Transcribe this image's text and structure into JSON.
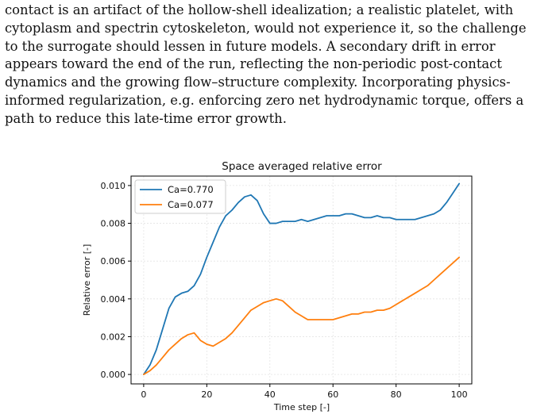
{
  "paragraph": {
    "lines": [
      "contact is an artifact of the hollow-shell idealization; a realistic platelet, with",
      "cytoplasm and spectrin cytoskeleton, would not experience it, so the challenge",
      "to the surrogate should lessen in future models.  A secondary drift in error",
      "appears toward the end of the run, reflecting the non-periodic post-contact",
      "dynamics and the growing flow–structure complexity.  Incorporating physics-",
      "informed regularization, e.g. enforcing zero net hydrodynamic torque, offers a",
      "path to reduce this late-time error growth."
    ]
  },
  "chart_data": {
    "type": "line",
    "title": "Space averaged relative error",
    "xlabel": "Time step [-]",
    "ylabel": "Relative error [-]",
    "xlim": [
      -4,
      104
    ],
    "ylim": [
      -0.0005,
      0.0105
    ],
    "xticks": [
      0,
      20,
      40,
      60,
      80,
      100
    ],
    "xtick_labels": [
      "0",
      "20",
      "40",
      "60",
      "80",
      "100"
    ],
    "yticks": [
      0,
      0.002,
      0.004,
      0.006,
      0.008,
      0.01
    ],
    "ytick_labels": [
      "0.000",
      "0.002",
      "0.004",
      "0.006",
      "0.008",
      "0.010"
    ],
    "grid": true,
    "legend": "top-left",
    "series": [
      {
        "name": "Ca=0.770",
        "color": "#1f77b4",
        "x": [
          0,
          2,
          4,
          6,
          8,
          10,
          12,
          14,
          16,
          18,
          20,
          22,
          24,
          26,
          28,
          30,
          32,
          34,
          36,
          38,
          40,
          42,
          44,
          46,
          48,
          50,
          52,
          54,
          56,
          58,
          60,
          62,
          64,
          66,
          68,
          70,
          72,
          74,
          76,
          78,
          80,
          82,
          84,
          86,
          88,
          90,
          92,
          94,
          96,
          98,
          100
        ],
        "y": [
          0.0,
          0.0005,
          0.0013,
          0.0024,
          0.0035,
          0.0041,
          0.0043,
          0.0044,
          0.0047,
          0.0053,
          0.0062,
          0.007,
          0.0078,
          0.0084,
          0.0087,
          0.0091,
          0.0094,
          0.0095,
          0.0092,
          0.0085,
          0.008,
          0.008,
          0.0081,
          0.0081,
          0.0081,
          0.0082,
          0.0081,
          0.0082,
          0.0083,
          0.0084,
          0.0084,
          0.0084,
          0.0085,
          0.0085,
          0.0084,
          0.0083,
          0.0083,
          0.0084,
          0.0083,
          0.0083,
          0.0082,
          0.0082,
          0.0082,
          0.0082,
          0.0083,
          0.0084,
          0.0085,
          0.0087,
          0.0091,
          0.0096,
          0.0101
        ]
      },
      {
        "name": "Ca=0.077",
        "color": "#ff7f0e",
        "x": [
          0,
          2,
          4,
          6,
          8,
          10,
          12,
          14,
          16,
          18,
          20,
          22,
          24,
          26,
          28,
          30,
          32,
          34,
          36,
          38,
          40,
          42,
          44,
          46,
          48,
          50,
          52,
          54,
          56,
          58,
          60,
          62,
          64,
          66,
          68,
          70,
          72,
          74,
          76,
          78,
          80,
          82,
          84,
          86,
          88,
          90,
          92,
          94,
          96,
          98,
          100
        ],
        "y": [
          0.0,
          0.0002,
          0.0005,
          0.0009,
          0.0013,
          0.0016,
          0.0019,
          0.0021,
          0.0022,
          0.0018,
          0.0016,
          0.0015,
          0.0017,
          0.0019,
          0.0022,
          0.0026,
          0.003,
          0.0034,
          0.0036,
          0.0038,
          0.0039,
          0.004,
          0.0039,
          0.0036,
          0.0033,
          0.0031,
          0.0029,
          0.0029,
          0.0029,
          0.0029,
          0.0029,
          0.003,
          0.0031,
          0.0032,
          0.0032,
          0.0033,
          0.0033,
          0.0034,
          0.0034,
          0.0035,
          0.0037,
          0.0039,
          0.0041,
          0.0043,
          0.0045,
          0.0047,
          0.005,
          0.0053,
          0.0056,
          0.0059,
          0.0062
        ]
      }
    ]
  }
}
